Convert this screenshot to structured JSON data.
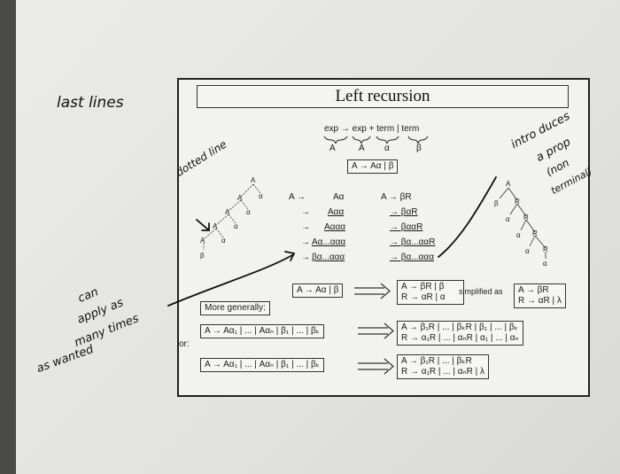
{
  "title": "Left recursion",
  "grammar_rule": "exp → exp + term | term",
  "grammar_letters": [
    "A",
    "A",
    "α",
    "β"
  ],
  "basic_rule": "A → Aα | β",
  "derivation_lhs": [
    "A →",
    "→",
    "→",
    "→",
    "→"
  ],
  "derivation_left": [
    "Aα",
    "Aαα",
    "Aααα",
    "Aα...ααα",
    "βα...ααα"
  ],
  "derivation_right_first": "A → βR",
  "derivation_right": [
    "→ βαR",
    "→ βααR",
    "→ βα...ααR",
    "→ βα...ααα"
  ],
  "box_rule": "A → Aα | β",
  "box_transformed": [
    "A → βR | β",
    "R → αR | α"
  ],
  "simplified_label": "simplified as",
  "box_simplified": [
    "A → βR",
    "R → αR | λ"
  ],
  "more_generally": "More generally:",
  "general_rule": "A → Aα₁ | ... | Aαₙ | β₁ | ... | βₖ",
  "general_transformed": [
    "A → β₁R | ... | βₖR | β₁ | ... | βₖ",
    "R → α₁R | ... | αₙR | α₁ | ... | αₙ"
  ],
  "or_label": "or:",
  "general_rule2": "A → Aα₁ | ... | Aαₙ | β₁ | ... | βₖ",
  "general_transformed2": [
    "A → β₁R | ... | βₖR",
    "R → α₁R | ... | αₙR | λ"
  ],
  "tree_left_labels": [
    "A",
    "A",
    "α",
    "A",
    "α",
    "A",
    "α",
    "A",
    "α",
    "β"
  ],
  "tree_right_labels": [
    "A",
    "β",
    "R",
    "α",
    "R",
    "α",
    "R",
    "α",
    "R",
    "α"
  ],
  "handwritten": {
    "last_lines": "last lines",
    "dotted_line": "dotted line",
    "can_apply": [
      "can",
      "apply as",
      "many times",
      "as wanted"
    ],
    "intro": [
      "intro duces",
      "a prop",
      "(non",
      "terminal)"
    ]
  }
}
